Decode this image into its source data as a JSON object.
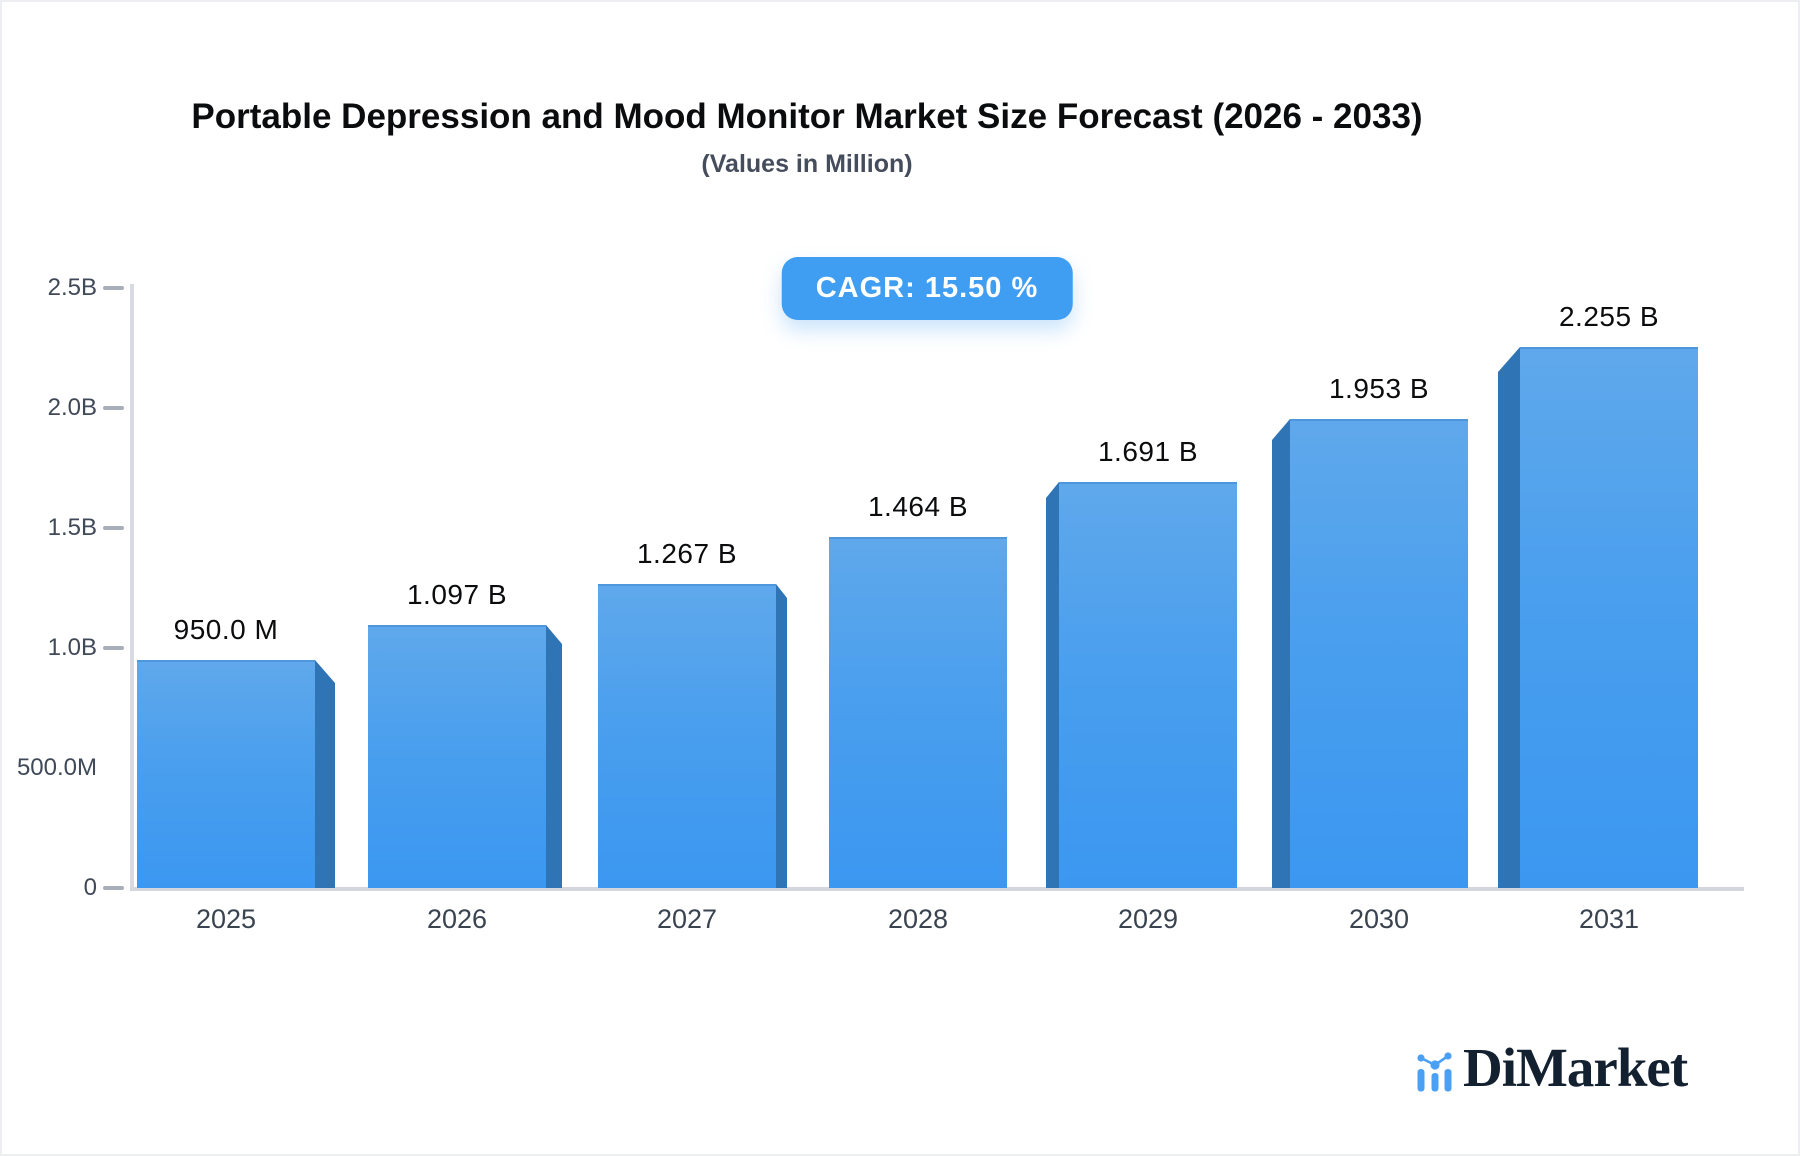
{
  "header": {
    "title": "Portable Depression and Mood Monitor Market Size Forecast (2026 - 2033)",
    "subtitle": "(Values in Million)"
  },
  "badge": {
    "label": "CAGR: 15.50 %",
    "bg_color": "#3F9EF2",
    "text_color": "#ffffff"
  },
  "chart_data": {
    "type": "bar",
    "title": "Portable Depression and Mood Monitor Market Size Forecast (2026 - 2033)",
    "subtitle": "(Values in Million)",
    "cagr_percent": 15.5,
    "categories": [
      "2025",
      "2026",
      "2027",
      "2028",
      "2029",
      "2030",
      "2031"
    ],
    "values_millions": [
      950.0,
      1097,
      1267,
      1464,
      1691,
      1953,
      2255
    ],
    "value_labels": [
      "950.0 M",
      "1.097 B",
      "1.267 B",
      "1.464 B",
      "1.691 B",
      "1.953 B",
      "2.255 B"
    ],
    "ylabel": "",
    "xlabel": "",
    "ylim_millions": [
      0,
      2500
    ],
    "yticks": [
      {
        "label": "0",
        "value_millions": 0,
        "dash": true
      },
      {
        "label": "500.0M",
        "value_millions": 500,
        "dash": false
      },
      {
        "label": "1.0B",
        "value_millions": 1000,
        "dash": true
      },
      {
        "label": "1.5B",
        "value_millions": 1500,
        "dash": true
      },
      {
        "label": "2.0B",
        "value_millions": 2000,
        "dash": true
      },
      {
        "label": "2.5B",
        "value_millions": 2500,
        "dash": true
      }
    ],
    "grid": false,
    "legend": false,
    "bar_color_top": "#5FA8EB",
    "bar_color_bottom": "#3B97F0",
    "bar_side_color": "#2F75B6",
    "axis_color": "#d5d8de"
  },
  "footer": {
    "brand": "DiMarket",
    "brand_icon_color": "#4AA0F5"
  }
}
